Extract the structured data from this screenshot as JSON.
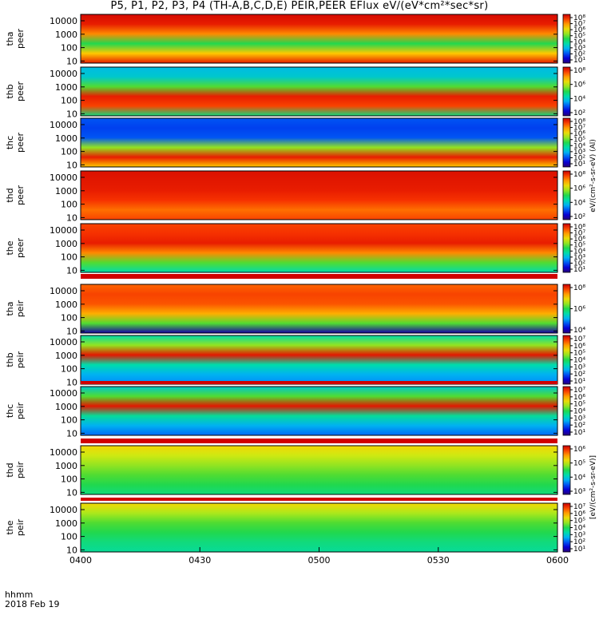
{
  "title": "P5, P1, P2, P3, P4 (TH-A,B,C,D,E) PEIR,PEER EFlux eV/(eV*cm²*sec*sr)",
  "footer": {
    "line1": "hhmm",
    "line2": "2018 Feb 19"
  },
  "colorbar_label_top": "eV/(cm²-s-sr-eV) (Al)",
  "colorbar_label_bottom": "[eV/(cm²-s-sr-eV)]",
  "chart_data": {
    "type": "heatmap",
    "x_tick_labels": [
      "0400",
      "0430",
      "0500",
      "0530",
      "0600"
    ],
    "y_tick_labels": [
      "10",
      "100",
      "1000",
      "10000"
    ],
    "y_scale": "log",
    "ylim": [
      7,
      30000
    ],
    "grid": false,
    "panels": [
      {
        "label_line1": "tha",
        "label_line2": "peer",
        "cb_ticks": [
          "10⁸",
          "10⁷",
          "10⁶",
          "10⁵",
          "10⁴",
          "10³",
          "10²",
          "10¹"
        ],
        "profile": [
          0.95,
          0.75,
          0.5,
          0.82,
          0.95,
          0.98
        ]
      },
      {
        "label_line1": "thb",
        "label_line2": "peer",
        "cb_ticks": [
          "10⁸",
          "10⁶",
          "10⁴",
          "10²"
        ],
        "profile": [
          0.45,
          0.9,
          0.95,
          0.55,
          0.35,
          0.32
        ]
      },
      {
        "label_line1": "thc",
        "label_line2": "peer",
        "cb_ticks": [
          "10⁸",
          "10⁷",
          "10⁶",
          "10⁵",
          "10⁴",
          "10³",
          "10²",
          "10¹"
        ],
        "profile": [
          0.75,
          0.95,
          0.6,
          0.2,
          0.18,
          0.2
        ]
      },
      {
        "label_line1": "thd",
        "label_line2": "peer",
        "cb_ticks": [
          "10⁸",
          "10⁶",
          "10⁴",
          "10²"
        ],
        "profile": [
          0.9,
          0.85,
          0.92,
          0.95,
          0.96,
          0.97
        ]
      },
      {
        "label_line1": "the",
        "label_line2": "peer",
        "cb_ticks": [
          "10⁸",
          "10⁷",
          "10⁶",
          "10⁵",
          "10⁴",
          "10³",
          "10²",
          "10¹"
        ],
        "profile": [
          0.4,
          0.55,
          0.82,
          0.95,
          0.92,
          0.9
        ]
      },
      {
        "label_line1": "tha",
        "label_line2": "peir",
        "cb_ticks": [
          "10⁸",
          "10⁶",
          "10⁴"
        ],
        "profile": [
          0.05,
          0.55,
          0.78,
          0.88,
          0.9,
          0.86
        ]
      },
      {
        "label_line1": "thb",
        "label_line2": "peir",
        "cb_ticks": [
          "10⁷",
          "10⁶",
          "10⁵",
          "10⁴",
          "10³",
          "10²",
          "10¹"
        ],
        "profile": [
          0.25,
          0.3,
          0.4,
          0.96,
          0.6,
          0.4
        ]
      },
      {
        "label_line1": "thc",
        "label_line2": "peir",
        "cb_ticks": [
          "10⁷",
          "10⁶",
          "10⁵",
          "10⁴",
          "10³",
          "10²",
          "10¹"
        ],
        "profile": [
          0.22,
          0.3,
          0.42,
          0.96,
          0.55,
          0.35
        ]
      },
      {
        "label_line1": "thd",
        "label_line2": "peir",
        "cb_ticks": [
          "10⁶",
          "10⁵",
          "10⁴",
          "10³"
        ],
        "profile": [
          0.45,
          0.5,
          0.55,
          0.6,
          0.65,
          0.72
        ]
      },
      {
        "label_line1": "the",
        "label_line2": "peir",
        "cb_ticks": [
          "10⁷",
          "10⁶",
          "10⁵",
          "10⁴",
          "10³",
          "10²",
          "10¹"
        ],
        "profile": [
          0.42,
          0.45,
          0.5,
          0.55,
          0.62,
          0.72
        ]
      }
    ]
  }
}
